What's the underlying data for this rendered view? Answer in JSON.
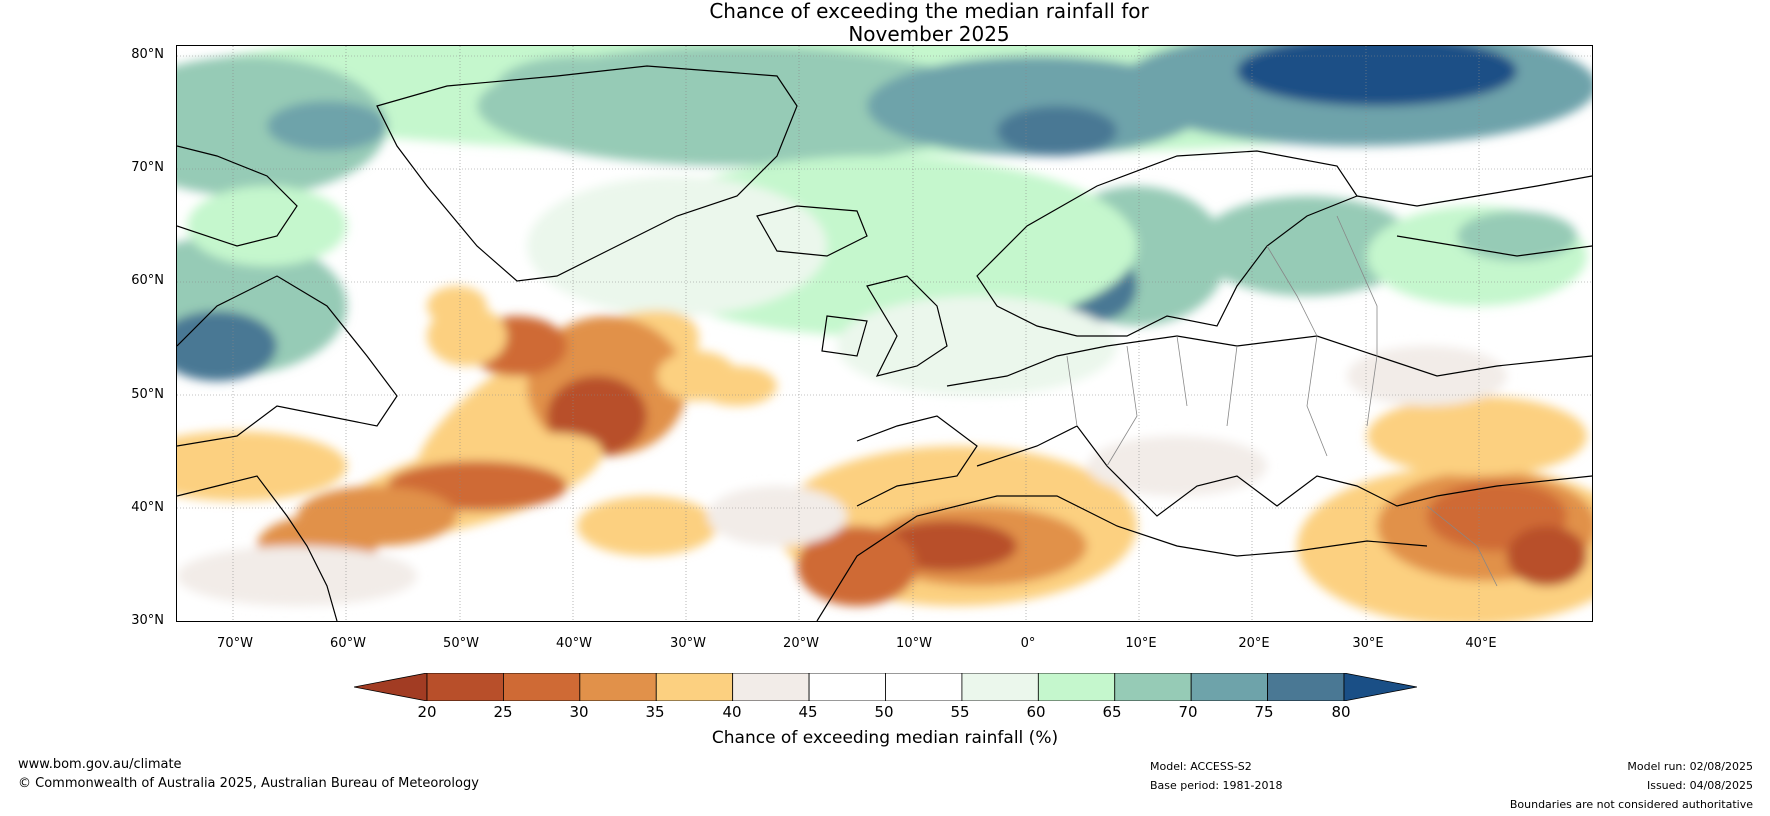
{
  "title": {
    "line1": "Chance of exceeding the median rainfall for",
    "line2": "November 2025"
  },
  "map": {
    "lat_ticks": [
      "80°N",
      "70°N",
      "60°N",
      "50°N",
      "40°N",
      "30°N"
    ],
    "lon_ticks": [
      "70°W",
      "60°W",
      "50°W",
      "40°W",
      "30°W",
      "20°W",
      "10°W",
      "0°",
      "10°E",
      "20°E",
      "30°E",
      "40°E"
    ],
    "extent": {
      "lon_min": -75,
      "lon_max": 50,
      "lat_min": 30,
      "lat_max": 81
    }
  },
  "colorbar": {
    "label": "Chance of exceeding median rainfall (%)",
    "ticks": [
      "20",
      "25",
      "30",
      "35",
      "40",
      "45",
      "50",
      "55",
      "60",
      "65",
      "70",
      "75",
      "80"
    ],
    "colors": [
      "#a23c23",
      "#b84f2a",
      "#cf6a35",
      "#e1914a",
      "#fcd080",
      "#f2ece8",
      "#ffffff",
      "#ffffff",
      "#ebf7ec",
      "#c5f7cd",
      "#96cbb6",
      "#6ea3aa",
      "#4a7894",
      "#1a4f86"
    ]
  },
  "footer": {
    "website": "www.bom.gov.au/climate",
    "copyright": "© Commonwealth of Australia 2025, Australian Bureau of Meteorology",
    "model": "Model: ACCESS-S2",
    "base_period": "Base period: 1981-2018",
    "model_run": "Model run: 02/08/2025",
    "issued": "Issued: 04/08/2025",
    "disclaimer": "Boundaries are not considered authoritative"
  }
}
